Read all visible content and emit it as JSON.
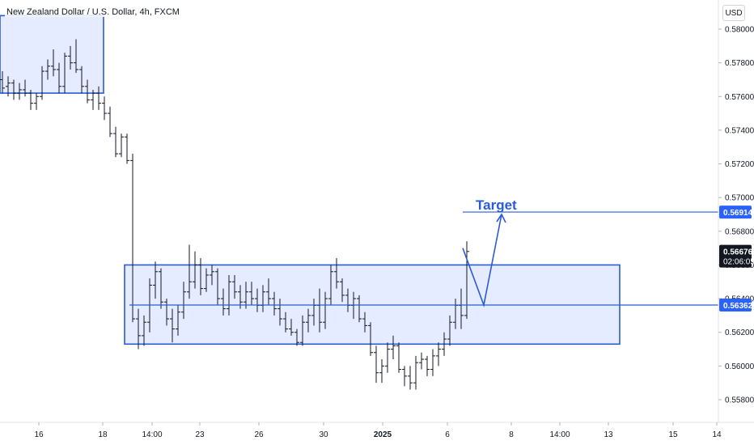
{
  "header": {
    "title": "New Zealand Dollar / U.S. Dollar, 4h, FXCM",
    "currency": "USD"
  },
  "chart_data": {
    "type": "ohlc-bar",
    "title": "New Zealand Dollar / U.S. Dollar, 4h, FXCM",
    "y_ticks": [
      "0.58000",
      "0.57800",
      "0.57600",
      "0.57400",
      "0.57200",
      "0.57000",
      "0.56800",
      "0.56600",
      "0.56400",
      "0.56200",
      "0.56000",
      "0.55800"
    ],
    "y_range": [
      0.557,
      0.5815
    ],
    "x_ticks": [
      "16",
      "18",
      "14:00",
      "23",
      "26",
      "30",
      "2025",
      "6",
      "8",
      "14:00",
      "13",
      "15",
      "14"
    ],
    "grid": false,
    "current_price": {
      "value": "0.56676",
      "countdown": "02:06:05"
    },
    "target_price": "0.56914",
    "level_price": "0.56362",
    "annotation": "Target",
    "zones": [
      {
        "name": "upper-supply-zone",
        "top": 0.5808,
        "bottom": 0.5762
      },
      {
        "name": "range-demand-zone",
        "top": 0.566,
        "bottom": 0.5613
      }
    ],
    "projection": [
      {
        "x": 572,
        "y": 0.567
      },
      {
        "x": 598,
        "y": 0.56362
      },
      {
        "x": 620,
        "y": 0.569
      }
    ],
    "bars": [
      [
        0.577,
        0.5775,
        0.5762,
        0.5765
      ],
      [
        0.5766,
        0.5772,
        0.576,
        0.5768
      ],
      [
        0.5768,
        0.577,
        0.5758,
        0.5762
      ],
      [
        0.5762,
        0.5768,
        0.5758,
        0.5764
      ],
      [
        0.5764,
        0.577,
        0.576,
        0.5762
      ],
      [
        0.5762,
        0.5764,
        0.5752,
        0.5756
      ],
      [
        0.5756,
        0.5762,
        0.5752,
        0.576
      ],
      [
        0.576,
        0.5778,
        0.5758,
        0.5775
      ],
      [
        0.5775,
        0.5782,
        0.577,
        0.5778
      ],
      [
        0.5778,
        0.5788,
        0.5772,
        0.5776
      ],
      [
        0.5776,
        0.578,
        0.5762,
        0.5766
      ],
      [
        0.5766,
        0.5786,
        0.5762,
        0.5784
      ],
      [
        0.5784,
        0.579,
        0.5776,
        0.578
      ],
      [
        0.578,
        0.5794,
        0.5774,
        0.5776
      ],
      [
        0.5776,
        0.5778,
        0.5762,
        0.5766
      ],
      [
        0.5766,
        0.577,
        0.5756,
        0.5758
      ],
      [
        0.5758,
        0.5764,
        0.5752,
        0.5762
      ],
      [
        0.5762,
        0.5766,
        0.5752,
        0.5756
      ],
      [
        0.5756,
        0.576,
        0.5746,
        0.575
      ],
      [
        0.575,
        0.5754,
        0.5736,
        0.5738
      ],
      [
        0.5738,
        0.5742,
        0.5724,
        0.5726
      ],
      [
        0.5726,
        0.5738,
        0.5724,
        0.5736
      ],
      [
        0.5736,
        0.5738,
        0.572,
        0.5722
      ],
      [
        0.5722,
        0.5726,
        0.5626,
        0.5628
      ],
      [
        0.5628,
        0.5634,
        0.561,
        0.5618
      ],
      [
        0.5618,
        0.563,
        0.5612,
        0.5626
      ],
      [
        0.5626,
        0.5652,
        0.562,
        0.5648
      ],
      [
        0.5648,
        0.5662,
        0.564,
        0.5656
      ],
      [
        0.5656,
        0.5658,
        0.5634,
        0.5638
      ],
      [
        0.5638,
        0.564,
        0.5624,
        0.5628
      ],
      [
        0.5628,
        0.5634,
        0.5614,
        0.5622
      ],
      [
        0.5622,
        0.5636,
        0.5618,
        0.5632
      ],
      [
        0.5632,
        0.565,
        0.5628,
        0.5644
      ],
      [
        0.5644,
        0.5672,
        0.564,
        0.565
      ],
      [
        0.565,
        0.5668,
        0.5646,
        0.566
      ],
      [
        0.566,
        0.5664,
        0.5642,
        0.5646
      ],
      [
        0.5646,
        0.5658,
        0.5644,
        0.5654
      ],
      [
        0.5654,
        0.566,
        0.5648,
        0.5656
      ],
      [
        0.5656,
        0.5658,
        0.5636,
        0.564
      ],
      [
        0.564,
        0.5646,
        0.563,
        0.5634
      ],
      [
        0.5634,
        0.5654,
        0.563,
        0.565
      ],
      [
        0.565,
        0.5654,
        0.564,
        0.5644
      ],
      [
        0.5644,
        0.5648,
        0.5634,
        0.5638
      ],
      [
        0.5638,
        0.565,
        0.5634,
        0.5644
      ],
      [
        0.5644,
        0.565,
        0.5636,
        0.564
      ],
      [
        0.564,
        0.5646,
        0.5632,
        0.5636
      ],
      [
        0.5636,
        0.5648,
        0.5632,
        0.5644
      ],
      [
        0.5644,
        0.5652,
        0.5636,
        0.564
      ],
      [
        0.564,
        0.5644,
        0.563,
        0.5634
      ],
      [
        0.5634,
        0.564,
        0.5624,
        0.5628
      ],
      [
        0.5628,
        0.5632,
        0.562,
        0.5622
      ],
      [
        0.5622,
        0.5628,
        0.5618,
        0.562
      ],
      [
        0.562,
        0.5622,
        0.5612,
        0.5614
      ],
      [
        0.5614,
        0.563,
        0.5612,
        0.5626
      ],
      [
        0.5626,
        0.5634,
        0.562,
        0.563
      ],
      [
        0.563,
        0.564,
        0.5624,
        0.5636
      ],
      [
        0.5636,
        0.5646,
        0.562,
        0.5626
      ],
      [
        0.5626,
        0.5644,
        0.5622,
        0.564
      ],
      [
        0.564,
        0.566,
        0.5636,
        0.5656
      ],
      [
        0.5656,
        0.5664,
        0.5646,
        0.565
      ],
      [
        0.565,
        0.5652,
        0.5638,
        0.5642
      ],
      [
        0.5642,
        0.5646,
        0.5632,
        0.5636
      ],
      [
        0.5636,
        0.5644,
        0.5628,
        0.564
      ],
      [
        0.564,
        0.5642,
        0.5626,
        0.5628
      ],
      [
        0.5628,
        0.5632,
        0.562,
        0.5624
      ],
      [
        0.5624,
        0.5626,
        0.5606,
        0.5608
      ],
      [
        0.5608,
        0.5612,
        0.559,
        0.5596
      ],
      [
        0.5596,
        0.5604,
        0.559,
        0.56
      ],
      [
        0.56,
        0.5614,
        0.5596,
        0.561
      ],
      [
        0.561,
        0.5618,
        0.5604,
        0.5612
      ],
      [
        0.5612,
        0.5614,
        0.5596,
        0.5598
      ],
      [
        0.5598,
        0.56,
        0.5588,
        0.5594
      ],
      [
        0.5594,
        0.56,
        0.5586,
        0.559
      ],
      [
        0.559,
        0.5606,
        0.5586,
        0.5602
      ],
      [
        0.5602,
        0.5608,
        0.5598,
        0.5604
      ],
      [
        0.5604,
        0.5606,
        0.5594,
        0.5598
      ],
      [
        0.5598,
        0.561,
        0.5594,
        0.5606
      ],
      [
        0.5606,
        0.5614,
        0.56,
        0.561
      ],
      [
        0.561,
        0.562,
        0.5606,
        0.5616
      ],
      [
        0.5616,
        0.563,
        0.5612,
        0.5626
      ],
      [
        0.5626,
        0.564,
        0.5622,
        0.5636
      ],
      [
        0.5636,
        0.5646,
        0.5622,
        0.563
      ],
      [
        0.563,
        0.5674,
        0.5628,
        0.5668
      ]
    ]
  }
}
